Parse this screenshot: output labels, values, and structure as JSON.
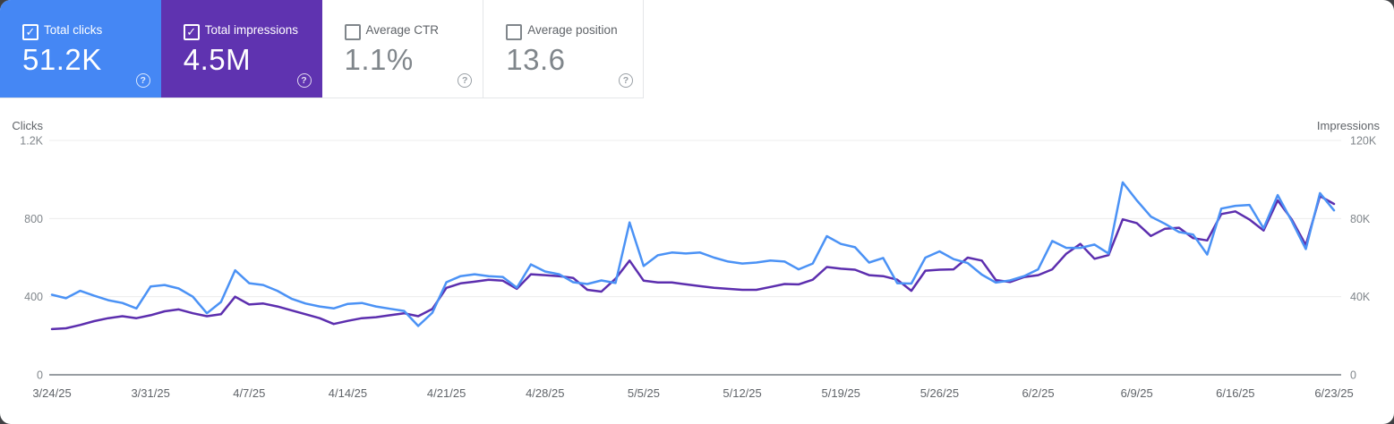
{
  "cards": [
    {
      "label": "Total clicks",
      "value": "51.2K",
      "checked": true,
      "color": "#4587f4"
    },
    {
      "label": "Total impressions",
      "value": "4.5M",
      "checked": true,
      "color": "#5f33b0"
    },
    {
      "label": "Average CTR",
      "value": "1.1%",
      "checked": false,
      "color": null
    },
    {
      "label": "Average position",
      "value": "13.6",
      "checked": false,
      "color": null
    }
  ],
  "chart_data": {
    "type": "line",
    "grid": "horizontal",
    "legend": "none",
    "x": [
      "3/24/25",
      "3/25/25",
      "3/26/25",
      "3/27/25",
      "3/28/25",
      "3/29/25",
      "3/30/25",
      "3/31/25",
      "4/1/25",
      "4/2/25",
      "4/3/25",
      "4/4/25",
      "4/5/25",
      "4/6/25",
      "4/7/25",
      "4/8/25",
      "4/9/25",
      "4/10/25",
      "4/11/25",
      "4/12/25",
      "4/13/25",
      "4/14/25",
      "4/15/25",
      "4/16/25",
      "4/17/25",
      "4/18/25",
      "4/19/25",
      "4/20/25",
      "4/21/25",
      "4/22/25",
      "4/23/25",
      "4/24/25",
      "4/25/25",
      "4/26/25",
      "4/27/25",
      "4/28/25",
      "4/29/25",
      "4/30/25",
      "5/1/25",
      "5/2/25",
      "5/3/25",
      "5/4/25",
      "5/5/25",
      "5/6/25",
      "5/7/25",
      "5/8/25",
      "5/9/25",
      "5/10/25",
      "5/11/25",
      "5/12/25",
      "5/13/25",
      "5/14/25",
      "5/15/25",
      "5/16/25",
      "5/17/25",
      "5/18/25",
      "5/19/25",
      "5/20/25",
      "5/21/25",
      "5/22/25",
      "5/23/25",
      "5/24/25",
      "5/25/25",
      "5/26/25",
      "5/27/25",
      "5/28/25",
      "5/29/25",
      "5/30/25",
      "5/31/25",
      "6/1/25",
      "6/2/25",
      "6/3/25",
      "6/4/25",
      "6/5/25",
      "6/6/25",
      "6/7/25",
      "6/8/25",
      "6/9/25",
      "6/10/25",
      "6/11/25",
      "6/12/25",
      "6/13/25",
      "6/14/25",
      "6/15/25",
      "6/16/25",
      "6/17/25",
      "6/18/25",
      "6/19/25",
      "6/20/25",
      "6/21/25",
      "6/22/25",
      "6/23/25"
    ],
    "x_tick_labels": [
      "3/24/25",
      "3/31/25",
      "4/7/25",
      "4/14/25",
      "4/21/25",
      "4/28/25",
      "5/5/25",
      "5/12/25",
      "5/19/25",
      "5/26/25",
      "6/2/25",
      "6/9/25",
      "6/16/25",
      "6/23/25"
    ],
    "x_tick_step": 7,
    "series": [
      {
        "name": "Clicks",
        "axis": "left",
        "color": "#4b92f5",
        "values": [
          410,
          392,
          430,
          405,
          382,
          368,
          340,
          452,
          460,
          442,
          400,
          315,
          373,
          535,
          469,
          460,
          430,
          390,
          365,
          350,
          340,
          363,
          368,
          350,
          338,
          327,
          250,
          318,
          474,
          505,
          515,
          505,
          501,
          446,
          565,
          529,
          515,
          474,
          465,
          483,
          470,
          780,
          557,
          612,
          626,
          621,
          626,
          600,
          580,
          570,
          575,
          585,
          580,
          540,
          570,
          710,
          670,
          653,
          575,
          598,
          469,
          467,
          600,
          632,
          592,
          572,
          513,
          472,
          483,
          505,
          540,
          685,
          650,
          650,
          667,
          621,
          985,
          893,
          810,
          773,
          731,
          718,
          616,
          851,
          865,
          870,
          750,
          920,
          787,
          644,
          930,
          842
        ]
      },
      {
        "name": "Impressions",
        "axis": "right",
        "color": "#5c2eae",
        "values": [
          23400,
          23800,
          25500,
          27500,
          29000,
          30000,
          29000,
          30500,
          32500,
          33500,
          31500,
          30000,
          31000,
          40000,
          36000,
          36500,
          35000,
          33000,
          31000,
          29000,
          26000,
          27600,
          29000,
          29500,
          30500,
          31500,
          30000,
          33700,
          44500,
          46800,
          47700,
          48700,
          48200,
          44000,
          51500,
          51000,
          50500,
          49600,
          43500,
          42600,
          49200,
          58500,
          48200,
          47300,
          47300,
          46300,
          45400,
          44500,
          44000,
          43500,
          43500,
          45000,
          46500,
          46300,
          48700,
          55200,
          54300,
          53800,
          51000,
          50500,
          48700,
          43000,
          53300,
          53800,
          54000,
          60000,
          58500,
          48500,
          47500,
          50000,
          51000,
          54000,
          62000,
          67000,
          59400,
          61300,
          79600,
          77700,
          71100,
          74800,
          75300,
          70000,
          68800,
          82300,
          83700,
          79500,
          73900,
          89300,
          79500,
          66400,
          91500,
          87500
        ]
      }
    ],
    "left_axis": {
      "title": "Clicks",
      "ticks": [
        "1.2K",
        "800",
        "400",
        "0"
      ],
      "tick_values": [
        1200,
        800,
        400,
        0
      ],
      "max": 1200
    },
    "right_axis": {
      "title": "Impressions",
      "ticks": [
        "120K",
        "80K",
        "40K",
        "0"
      ],
      "tick_values": [
        120000,
        80000,
        40000,
        0
      ],
      "max": 120000
    }
  }
}
